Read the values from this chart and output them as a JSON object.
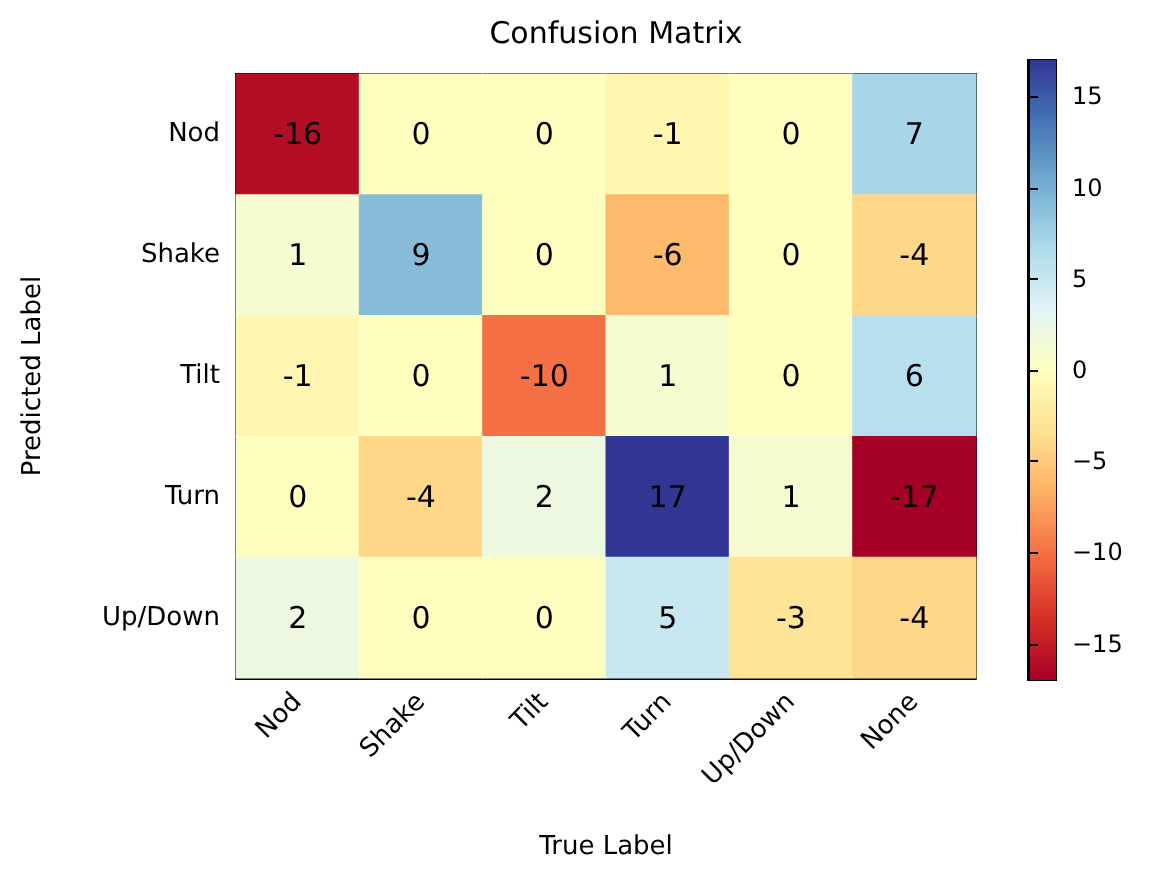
{
  "chart_data": {
    "type": "heatmap",
    "title": "Confusion Matrix",
    "xlabel": "True Label",
    "ylabel": "Predicted Label",
    "categories": [
      "Nod",
      "Shake",
      "Tilt",
      "Turn",
      "Up/Down",
      "None"
    ],
    "y_categories": [
      "Nod",
      "Shake",
      "Tilt",
      "Turn",
      "Up/Down"
    ],
    "cells": [
      [
        -16,
        0,
        0,
        -1,
        0,
        7
      ],
      [
        1,
        9,
        0,
        -6,
        0,
        -4
      ],
      [
        -1,
        0,
        -10,
        1,
        0,
        6
      ],
      [
        0,
        -4,
        2,
        17,
        1,
        -17
      ],
      [
        2,
        0,
        0,
        5,
        -3,
        -4
      ]
    ],
    "data_labels": true,
    "clim": [
      -17,
      17
    ],
    "cticks": [
      {
        "value": -15,
        "label": "−15"
      },
      {
        "value": -10,
        "label": "−10"
      },
      {
        "value": -5,
        "label": "−5"
      },
      0,
      5,
      10,
      15
    ]
  }
}
